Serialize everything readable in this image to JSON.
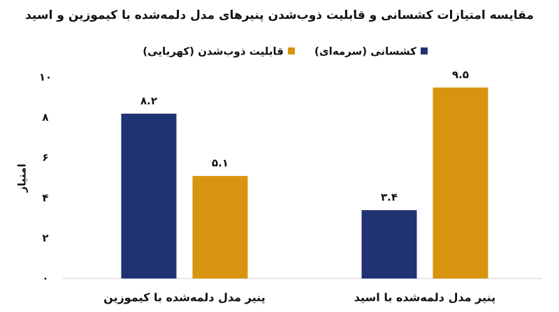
{
  "chart_data": {
    "type": "bar",
    "title": "مقایسه امتیازات کشسانی و قابلیت ذوب‌شدن پنیرهای مدل دلمه‌شده با کیموزین و اسید",
    "y_label": "امتیاز",
    "categories": [
      "پنیر مدل دلمه‌شده با کیموزین",
      "پنیر مدل دلمه‌شده با اسید"
    ],
    "series": [
      {
        "name": "کشسانی (سرمه‌ای)",
        "color": "#1f3272",
        "values": [
          8.2,
          3.4
        ],
        "value_labels": [
          "۸.۲",
          "۳.۴"
        ]
      },
      {
        "name": "قابلیت ذوب‌شدن (کهربایی)",
        "color": "#d9940f",
        "values": [
          5.1,
          9.5
        ],
        "value_labels": [
          "۵.۱",
          "۹.۵"
        ]
      }
    ],
    "ylim": [
      0,
      10
    ],
    "yticks": [
      {
        "value": 0,
        "label": "۰"
      },
      {
        "value": 2,
        "label": "۲"
      },
      {
        "value": 4,
        "label": "۴"
      },
      {
        "value": 6,
        "label": "۶"
      },
      {
        "value": 8,
        "label": "۸"
      },
      {
        "value": 10,
        "label": "۱۰"
      }
    ]
  }
}
